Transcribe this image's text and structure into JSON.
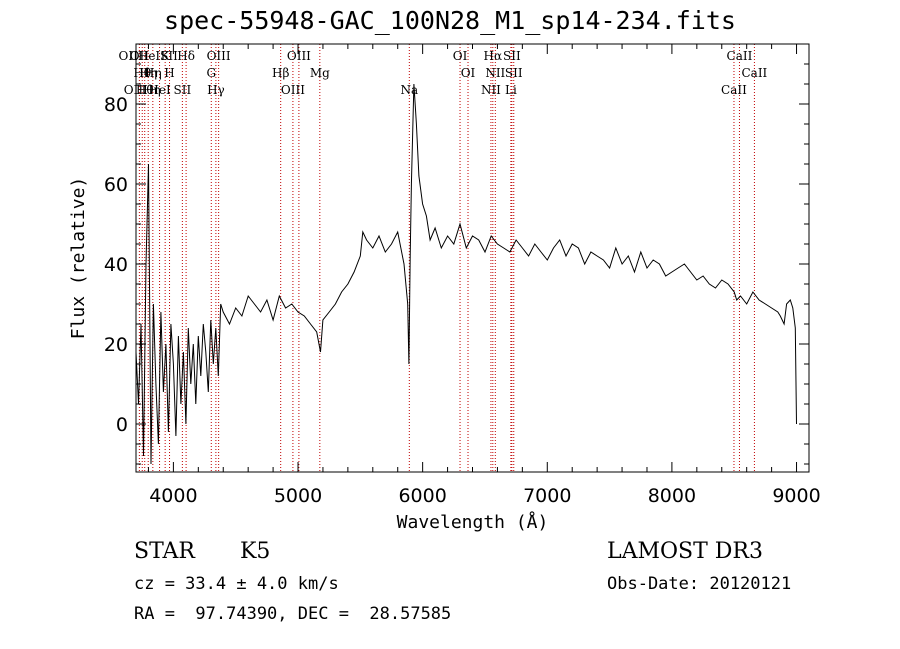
{
  "chart_data": {
    "type": "line",
    "title": "spec-55948-GAC_100N28_M1_sp14-234.fits",
    "xlabel": "Wavelength (Å)",
    "ylabel": "Flux (relative)",
    "xlim": [
      3700,
      9100
    ],
    "ylim": [
      -12,
      95
    ],
    "xticks": [
      4000,
      5000,
      6000,
      7000,
      8000,
      9000
    ],
    "yticks": [
      0,
      20,
      40,
      60,
      80
    ],
    "series": [
      {
        "name": "flux",
        "x": [
          3700,
          3720,
          3740,
          3760,
          3780,
          3800,
          3820,
          3840,
          3860,
          3880,
          3900,
          3920,
          3940,
          3960,
          3980,
          4000,
          4020,
          4040,
          4060,
          4080,
          4100,
          4120,
          4140,
          4160,
          4180,
          4200,
          4220,
          4240,
          4260,
          4280,
          4300,
          4320,
          4340,
          4360,
          4380,
          4400,
          4450,
          4500,
          4550,
          4600,
          4650,
          4700,
          4750,
          4800,
          4850,
          4900,
          4950,
          5000,
          5050,
          5100,
          5150,
          5180,
          5200,
          5250,
          5300,
          5350,
          5400,
          5450,
          5500,
          5520,
          5550,
          5600,
          5650,
          5700,
          5750,
          5800,
          5850,
          5880,
          5890,
          5900,
          5910,
          5930,
          5950,
          5970,
          6000,
          6030,
          6060,
          6100,
          6150,
          6200,
          6250,
          6300,
          6350,
          6400,
          6450,
          6500,
          6550,
          6600,
          6650,
          6700,
          6750,
          6800,
          6850,
          6900,
          6950,
          7000,
          7050,
          7100,
          7150,
          7200,
          7250,
          7300,
          7350,
          7400,
          7450,
          7500,
          7550,
          7600,
          7650,
          7700,
          7750,
          7800,
          7850,
          7900,
          7950,
          8000,
          8050,
          8100,
          8150,
          8200,
          8250,
          8300,
          8350,
          8400,
          8450,
          8500,
          8520,
          8550,
          8600,
          8650,
          8700,
          8750,
          8800,
          8850,
          8870,
          8900,
          8920,
          8950,
          8970,
          8990,
          9000
        ],
        "values": [
          18,
          5,
          25,
          -8,
          40,
          65,
          -10,
          30,
          10,
          -5,
          28,
          8,
          20,
          -2,
          25,
          15,
          -3,
          22,
          5,
          18,
          0,
          24,
          10,
          20,
          5,
          22,
          12,
          25,
          18,
          8,
          26,
          15,
          24,
          12,
          30,
          28,
          25,
          29,
          27,
          32,
          30,
          28,
          31,
          26,
          32,
          29,
          30,
          28,
          27,
          25,
          23,
          18,
          26,
          28,
          30,
          33,
          35,
          38,
          42,
          48,
          46,
          44,
          47,
          43,
          45,
          48,
          40,
          30,
          15,
          42,
          60,
          85,
          75,
          62,
          55,
          52,
          46,
          49,
          44,
          47,
          45,
          50,
          44,
          47,
          46,
          43,
          47,
          45,
          44,
          43,
          46,
          44,
          42,
          45,
          43,
          41,
          44,
          46,
          42,
          45,
          44,
          40,
          43,
          42,
          41,
          39,
          44,
          40,
          42,
          38,
          43,
          39,
          41,
          40,
          37,
          38,
          39,
          40,
          38,
          36,
          37,
          35,
          34,
          36,
          35,
          33,
          31,
          32,
          30,
          33,
          31,
          30,
          29,
          28,
          27,
          25,
          30,
          31,
          29,
          24,
          0
        ]
      }
    ],
    "lines": [
      {
        "w": 3727,
        "labels": [
          "OII"
        ]
      },
      {
        "w": 3750,
        "labels": [
          "Hθ",
          "OIIHη"
        ]
      },
      {
        "w": 3770,
        "labels": [
          "Hθ"
        ]
      },
      {
        "w": 3798,
        "labels": [
          "OIIHeISII",
          "Hη"
        ]
      },
      {
        "w": 3835,
        "labels": [
          "Hη"
        ]
      },
      {
        "w": 3889,
        "labels": [
          "HeI"
        ]
      },
      {
        "w": 3934,
        "labels": [
          "K"
        ]
      },
      {
        "w": 3969,
        "labels": [
          "H"
        ]
      },
      {
        "w": 4072,
        "labels": [
          "SII"
        ]
      },
      {
        "w": 4102,
        "labels": [
          "Hδ"
        ]
      },
      {
        "w": 4304,
        "labels": [
          "G"
        ]
      },
      {
        "w": 4341,
        "labels": [
          "Hγ"
        ]
      },
      {
        "w": 4363,
        "labels": [
          "OIII"
        ]
      },
      {
        "w": 4861,
        "labels": [
          "Hβ"
        ]
      },
      {
        "w": 4959,
        "labels": [
          "OIII"
        ]
      },
      {
        "w": 5007,
        "labels": [
          "OIII"
        ]
      },
      {
        "w": 5175,
        "labels": [
          "Mg"
        ]
      },
      {
        "w": 5893,
        "labels": [
          "Na"
        ]
      },
      {
        "w": 6300,
        "labels": [
          "OI"
        ]
      },
      {
        "w": 6364,
        "labels": [
          "OI"
        ]
      },
      {
        "w": 6548,
        "labels": [
          "NII"
        ]
      },
      {
        "w": 6563,
        "labels": [
          "Hα"
        ]
      },
      {
        "w": 6583,
        "labels": [
          "NII"
        ]
      },
      {
        "w": 6708,
        "labels": [
          "Li"
        ]
      },
      {
        "w": 6716,
        "labels": [
          "SII"
        ]
      },
      {
        "w": 6731,
        "labels": [
          "SII"
        ]
      },
      {
        "w": 8498,
        "labels": [
          "CaII"
        ]
      },
      {
        "w": 8542,
        "labels": [
          "CaII"
        ]
      },
      {
        "w": 8662,
        "labels": [
          "CaII"
        ]
      }
    ]
  },
  "footer": {
    "object_class": "STAR",
    "subclass": "K5",
    "survey": "LAMOST DR3",
    "redshift": "cz = 33.4 ± 4.0 km/s",
    "obs_date": "Obs-Date: 20120121",
    "coords": "RA =  97.74390, DEC =  28.57585"
  }
}
